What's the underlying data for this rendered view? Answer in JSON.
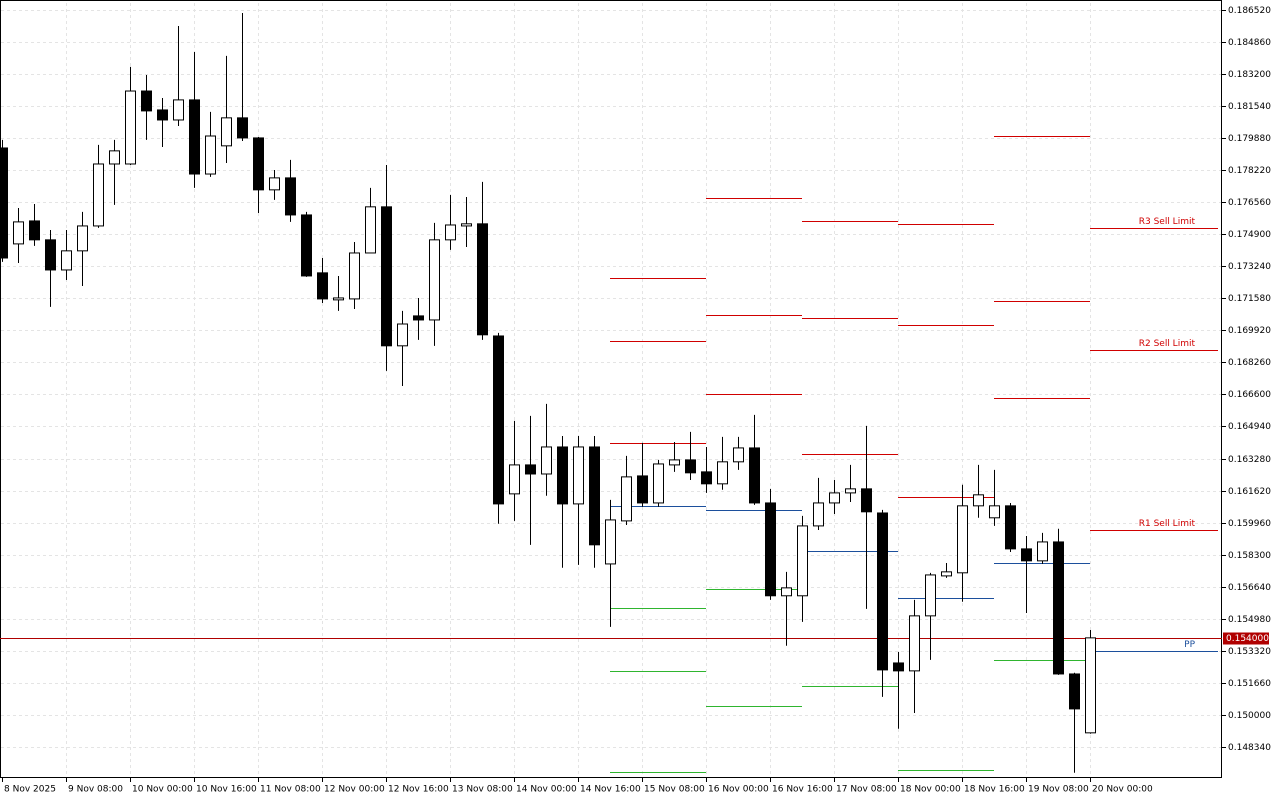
{
  "chart_data": {
    "type": "candlestick",
    "x": [
      "8 Nov 2025",
      null,
      null,
      null,
      "9 Nov 08:00",
      null,
      null,
      null,
      "10 Nov 00:00",
      null,
      null,
      null,
      "10 Nov 16:00",
      null,
      null,
      null,
      "11 Nov 08:00",
      null,
      null,
      null,
      "12 Nov 00:00",
      null,
      null,
      null,
      "12 Nov 16:00",
      null,
      null,
      null,
      "13 Nov 08:00",
      null,
      null,
      null,
      "14 Nov 00:00",
      null,
      null,
      null,
      "14 Nov 16:00",
      null,
      null,
      null,
      "15 Nov 08:00",
      null,
      null,
      null,
      "16 Nov 00:00",
      null,
      null,
      null,
      "16 Nov 16:00",
      null,
      null,
      null,
      "17 Nov 08:00",
      null,
      null,
      null,
      "18 Nov 00:00",
      null,
      null,
      null,
      "18 Nov 16:00",
      null,
      null,
      null,
      "19 Nov 08:00",
      null,
      null,
      null,
      "20 Nov 00:00"
    ],
    "open": [
      0.17937,
      0.1744,
      0.17559,
      0.17461,
      0.17305,
      0.17404,
      0.17533,
      0.17854,
      0.17854,
      0.18232,
      0.18134,
      0.18082,
      0.18186,
      0.17802,
      0.17948,
      0.18093,
      0.17989,
      0.1772,
      0.17782,
      0.1759,
      0.1729,
      0.1715,
      0.17155,
      0.17393,
      0.17632,
      0.16912,
      0.17067,
      0.17046,
      0.17461,
      0.17533,
      0.17544,
      0.16963,
      0.16145,
      0.16295,
      0.16248,
      0.16388,
      0.16093,
      0.16388,
      0.15782,
      0.16005,
      0.16238,
      0.16098,
      0.16295,
      0.16321,
      0.16259,
      0.16197,
      0.16311,
      0.16383,
      0.16098,
      0.15617,
      0.15617,
      0.15979,
      0.16098,
      0.1615,
      0.16171,
      0.16046,
      0.15269,
      0.15228,
      0.15513,
      0.1572,
      0.15736,
      0.16083,
      0.16021,
      0.16083,
      0.1586,
      0.15798,
      0.15896,
      0.15212,
      0.14907
    ],
    "high": [
      0.17979,
      0.17626,
      0.17647,
      0.17512,
      0.17512,
      0.17606,
      0.17953,
      0.17979,
      0.18357,
      0.18315,
      0.18196,
      0.18569,
      0.18434,
      0.18124,
      0.18414,
      0.18636,
      0.17994,
      0.17823,
      0.17875,
      0.17606,
      0.17367,
      0.17274,
      0.1745,
      0.1773,
      0.17849,
      0.17093,
      0.1716,
      0.17549,
      0.17694,
      0.17683,
      0.17761,
      0.16979,
      0.16523,
      0.16549,
      0.16611,
      0.16445,
      0.16445,
      0.16445,
      0.16114,
      0.16342,
      0.16409,
      0.16321,
      0.16414,
      0.16466,
      0.16388,
      0.1644,
      0.1644,
      0.16554,
      0.16171,
      0.15741,
      0.16031,
      0.16228,
      0.16217,
      0.16295,
      0.16497,
      0.16062,
      0.15326,
      0.15596,
      0.15736,
      0.15787,
      0.16192,
      0.16295,
      0.16269,
      0.16098,
      0.15927,
      0.15943,
      0.15964,
      0.15218,
      0.1544
    ],
    "low": [
      0.17347,
      0.17341,
      0.1743,
      0.17114,
      0.17253,
      0.17222,
      0.17523,
      0.17642,
      0.17849,
      0.17979,
      0.17942,
      0.18051,
      0.1773,
      0.17787,
      0.17859,
      0.17973,
      0.176,
      0.17668,
      0.17554,
      0.17269,
      0.17134,
      0.17093,
      0.17103,
      0.17393,
      0.16782,
      0.16704,
      0.16943,
      0.16912,
      0.17409,
      0.17424,
      0.16943,
      0.1599,
      0.16005,
      0.15881,
      0.16135,
      0.15762,
      0.15777,
      0.15762,
      0.15456,
      0.15984,
      0.16078,
      0.16078,
      0.16259,
      0.16217,
      0.1615,
      0.16166,
      0.16269,
      0.16088,
      0.15596,
      0.15358,
      0.15482,
      0.15958,
      0.16041,
      0.16103,
      0.15549,
      0.15093,
      0.14928,
      0.1501,
      0.15285,
      0.1571,
      0.15586,
      0.16021,
      0.15979,
      0.15844,
      0.15528,
      0.15782,
      0.15207,
      0.147,
      0.14902
    ],
    "close": [
      0.17367,
      0.17554,
      0.17461,
      0.17305,
      0.17404,
      0.17533,
      0.17854,
      0.17922,
      0.18232,
      0.18129,
      0.18082,
      0.18186,
      0.17802,
      0.17999,
      0.18093,
      0.17989,
      0.1772,
      0.17782,
      0.1759,
      0.17274,
      0.17155,
      0.1716,
      0.17393,
      0.17632,
      0.16912,
      0.17025,
      0.17046,
      0.17461,
      0.17538,
      0.17544,
      0.16969,
      0.16093,
      0.16295,
      0.16248,
      0.16388,
      0.16093,
      0.16388,
      0.15881,
      0.1601,
      0.16233,
      0.16098,
      0.163,
      0.16321,
      0.16254,
      0.16197,
      0.16311,
      0.16383,
      0.16098,
      0.15617,
      0.15658,
      0.15979,
      0.16098,
      0.1615,
      0.16171,
      0.16052,
      0.15233,
      0.15228,
      0.15513,
      0.15725,
      0.15741,
      0.16083,
      0.1614,
      0.16083,
      0.1586,
      0.15798,
      0.15896,
      0.15212,
      0.15031,
      0.15399
    ],
    "up_color": "#ffffff",
    "down_color": "#000000",
    "ylim": [
      0.14673,
      0.18688
    ],
    "yticks": [
      {
        "value": 0.18652,
        "label": "0.186520"
      },
      {
        "value": 0.18486,
        "label": "0.184860"
      },
      {
        "value": 0.1832,
        "label": "0.183200"
      },
      {
        "value": 0.18154,
        "label": "0.181540"
      },
      {
        "value": 0.17988,
        "label": "0.179880"
      },
      {
        "value": 0.17822,
        "label": "0.178220"
      },
      {
        "value": 0.17656,
        "label": "0.176560"
      },
      {
        "value": 0.1749,
        "label": "0.174900"
      },
      {
        "value": 0.17324,
        "label": "0.173240"
      },
      {
        "value": 0.17158,
        "label": "0.171580"
      },
      {
        "value": 0.16992,
        "label": "0.169920"
      },
      {
        "value": 0.16826,
        "label": "0.168260"
      },
      {
        "value": 0.1666,
        "label": "0.166600"
      },
      {
        "value": 0.16494,
        "label": "0.164940"
      },
      {
        "value": 0.16328,
        "label": "0.163280"
      },
      {
        "value": 0.16162,
        "label": "0.161620"
      },
      {
        "value": 0.15996,
        "label": "0.159960"
      },
      {
        "value": 0.1583,
        "label": "0.158300"
      },
      {
        "value": 0.15664,
        "label": "0.156640"
      },
      {
        "value": 0.15498,
        "label": "0.154980"
      },
      {
        "value": 0.15332,
        "label": "0.153320"
      },
      {
        "value": 0.15166,
        "label": "0.151660"
      },
      {
        "value": 0.15,
        "label": "0.150000"
      },
      {
        "value": 0.14834,
        "label": "0.148340"
      }
    ],
    "grid": true,
    "current_price": {
      "value": 0.154,
      "label": "0.154000",
      "color": "#b00000"
    },
    "pivots": [
      {
        "start": 38,
        "levels": [
          {
            "color": "#d00000",
            "value": 0.17264
          },
          {
            "color": "#d00000",
            "value": 0.16937
          },
          {
            "color": "#d00000",
            "value": 0.16409
          },
          {
            "color": "#1c4f9c",
            "value": 0.16083
          },
          {
            "color": "#2fb52f",
            "value": 0.15554
          },
          {
            "color": "#2fb52f",
            "value": 0.15228
          },
          {
            "color": "#2fb52f",
            "value": 0.14705
          }
        ]
      },
      {
        "start": 44,
        "levels": [
          {
            "color": "#d00000",
            "value": 0.17678
          },
          {
            "color": "#d00000",
            "value": 0.17072
          },
          {
            "color": "#d00000",
            "value": 0.16663
          },
          {
            "color": "#1c4f9c",
            "value": 0.16062
          },
          {
            "color": "#2fb52f",
            "value": 0.15653
          },
          {
            "color": "#2fb52f",
            "value": 0.15047
          }
        ]
      },
      {
        "start": 50,
        "levels": [
          {
            "color": "#d00000",
            "value": 0.17559
          },
          {
            "color": "#d00000",
            "value": 0.17057
          },
          {
            "color": "#d00000",
            "value": 0.16352
          },
          {
            "color": "#1c4f9c",
            "value": 0.1585
          },
          {
            "color": "#2fb52f",
            "value": 0.1515
          }
        ]
      },
      {
        "start": 56,
        "levels": [
          {
            "color": "#d00000",
            "value": 0.17544
          },
          {
            "color": "#d00000",
            "value": 0.1702
          },
          {
            "color": "#d00000",
            "value": 0.16129
          },
          {
            "color": "#1c4f9c",
            "value": 0.15606
          },
          {
            "color": "#2fb52f",
            "value": 0.14715
          }
        ]
      },
      {
        "start": 62,
        "levels": [
          {
            "color": "#d00000",
            "value": 0.17999
          },
          {
            "color": "#d00000",
            "value": 0.17145
          },
          {
            "color": "#d00000",
            "value": 0.16642
          },
          {
            "color": "#1c4f9c",
            "value": 0.15787
          },
          {
            "color": "#2fb52f",
            "value": 0.15285
          }
        ]
      },
      {
        "start": 68,
        "levels": [
          {
            "name": "R3 Sell Limit",
            "color": "#d00000",
            "value": 0.17523
          },
          {
            "name": "R2 Sell Limit",
            "color": "#d00000",
            "value": 0.16891
          },
          {
            "name": "R1 Sell Limit",
            "color": "#d00000",
            "value": 0.15959
          },
          {
            "name": "PP",
            "color": "#1c4f9c",
            "value": 0.15332
          }
        ]
      }
    ]
  }
}
